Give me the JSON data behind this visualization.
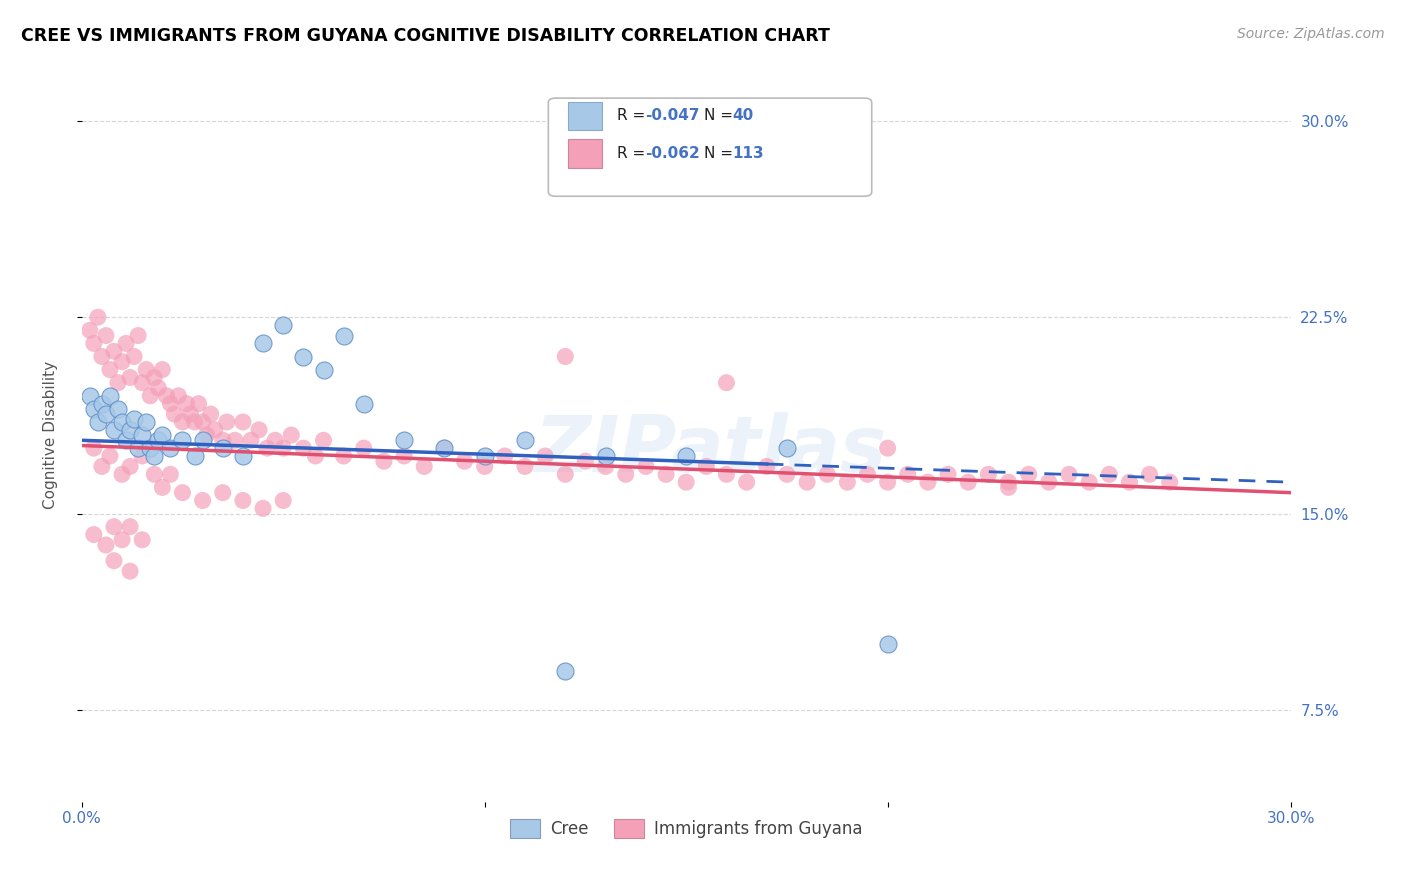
{
  "title": "CREE VS IMMIGRANTS FROM GUYANA COGNITIVE DISABILITY CORRELATION CHART",
  "source": "Source: ZipAtlas.com",
  "ylabel": "Cognitive Disability",
  "xmin": 0.0,
  "xmax": 0.3,
  "ymin": 0.04,
  "ymax": 0.32,
  "yticks": [
    0.075,
    0.15,
    0.225,
    0.3
  ],
  "ytick_labels": [
    "7.5%",
    "15.0%",
    "22.5%",
    "30.0%"
  ],
  "cree_color": "#a8c8e8",
  "guyana_color": "#f4a0b8",
  "trend_cree_color": "#3060c0",
  "trend_guyana_color": "#e05070",
  "watermark": "ZIPatlas",
  "cree_trend_start_y": 0.178,
  "cree_trend_end_y": 0.162,
  "guyana_trend_start_y": 0.176,
  "guyana_trend_end_y": 0.158,
  "cree_points": [
    [
      0.002,
      0.195
    ],
    [
      0.003,
      0.19
    ],
    [
      0.004,
      0.185
    ],
    [
      0.005,
      0.192
    ],
    [
      0.006,
      0.188
    ],
    [
      0.007,
      0.195
    ],
    [
      0.008,
      0.182
    ],
    [
      0.009,
      0.19
    ],
    [
      0.01,
      0.185
    ],
    [
      0.011,
      0.178
    ],
    [
      0.012,
      0.182
    ],
    [
      0.013,
      0.186
    ],
    [
      0.014,
      0.175
    ],
    [
      0.015,
      0.18
    ],
    [
      0.016,
      0.185
    ],
    [
      0.017,
      0.175
    ],
    [
      0.018,
      0.172
    ],
    [
      0.019,
      0.178
    ],
    [
      0.02,
      0.18
    ],
    [
      0.022,
      0.175
    ],
    [
      0.025,
      0.178
    ],
    [
      0.028,
      0.172
    ],
    [
      0.03,
      0.178
    ],
    [
      0.035,
      0.175
    ],
    [
      0.04,
      0.172
    ],
    [
      0.045,
      0.215
    ],
    [
      0.05,
      0.222
    ],
    [
      0.055,
      0.21
    ],
    [
      0.06,
      0.205
    ],
    [
      0.065,
      0.218
    ],
    [
      0.07,
      0.192
    ],
    [
      0.08,
      0.178
    ],
    [
      0.09,
      0.175
    ],
    [
      0.1,
      0.172
    ],
    [
      0.11,
      0.178
    ],
    [
      0.13,
      0.172
    ],
    [
      0.15,
      0.172
    ],
    [
      0.175,
      0.175
    ],
    [
      0.12,
      0.09
    ],
    [
      0.2,
      0.1
    ]
  ],
  "guyana_points": [
    [
      0.002,
      0.22
    ],
    [
      0.003,
      0.215
    ],
    [
      0.004,
      0.225
    ],
    [
      0.005,
      0.21
    ],
    [
      0.006,
      0.218
    ],
    [
      0.007,
      0.205
    ],
    [
      0.008,
      0.212
    ],
    [
      0.009,
      0.2
    ],
    [
      0.01,
      0.208
    ],
    [
      0.011,
      0.215
    ],
    [
      0.012,
      0.202
    ],
    [
      0.013,
      0.21
    ],
    [
      0.014,
      0.218
    ],
    [
      0.015,
      0.2
    ],
    [
      0.016,
      0.205
    ],
    [
      0.017,
      0.195
    ],
    [
      0.018,
      0.202
    ],
    [
      0.019,
      0.198
    ],
    [
      0.02,
      0.205
    ],
    [
      0.021,
      0.195
    ],
    [
      0.022,
      0.192
    ],
    [
      0.023,
      0.188
    ],
    [
      0.024,
      0.195
    ],
    [
      0.025,
      0.185
    ],
    [
      0.026,
      0.192
    ],
    [
      0.027,
      0.188
    ],
    [
      0.028,
      0.185
    ],
    [
      0.029,
      0.192
    ],
    [
      0.03,
      0.185
    ],
    [
      0.031,
      0.18
    ],
    [
      0.032,
      0.188
    ],
    [
      0.033,
      0.182
    ],
    [
      0.035,
      0.178
    ],
    [
      0.036,
      0.185
    ],
    [
      0.038,
      0.178
    ],
    [
      0.04,
      0.185
    ],
    [
      0.042,
      0.178
    ],
    [
      0.044,
      0.182
    ],
    [
      0.046,
      0.175
    ],
    [
      0.048,
      0.178
    ],
    [
      0.05,
      0.175
    ],
    [
      0.052,
      0.18
    ],
    [
      0.055,
      0.175
    ],
    [
      0.058,
      0.172
    ],
    [
      0.06,
      0.178
    ],
    [
      0.065,
      0.172
    ],
    [
      0.07,
      0.175
    ],
    [
      0.075,
      0.17
    ],
    [
      0.08,
      0.172
    ],
    [
      0.085,
      0.168
    ],
    [
      0.09,
      0.175
    ],
    [
      0.095,
      0.17
    ],
    [
      0.1,
      0.168
    ],
    [
      0.105,
      0.172
    ],
    [
      0.11,
      0.168
    ],
    [
      0.115,
      0.172
    ],
    [
      0.12,
      0.165
    ],
    [
      0.125,
      0.17
    ],
    [
      0.13,
      0.168
    ],
    [
      0.135,
      0.165
    ],
    [
      0.14,
      0.168
    ],
    [
      0.145,
      0.165
    ],
    [
      0.15,
      0.162
    ],
    [
      0.155,
      0.168
    ],
    [
      0.16,
      0.165
    ],
    [
      0.165,
      0.162
    ],
    [
      0.17,
      0.168
    ],
    [
      0.175,
      0.165
    ],
    [
      0.18,
      0.162
    ],
    [
      0.185,
      0.165
    ],
    [
      0.19,
      0.162
    ],
    [
      0.195,
      0.165
    ],
    [
      0.2,
      0.162
    ],
    [
      0.205,
      0.165
    ],
    [
      0.21,
      0.162
    ],
    [
      0.215,
      0.165
    ],
    [
      0.22,
      0.162
    ],
    [
      0.225,
      0.165
    ],
    [
      0.23,
      0.162
    ],
    [
      0.235,
      0.165
    ],
    [
      0.24,
      0.162
    ],
    [
      0.245,
      0.165
    ],
    [
      0.25,
      0.162
    ],
    [
      0.255,
      0.165
    ],
    [
      0.26,
      0.162
    ],
    [
      0.265,
      0.165
    ],
    [
      0.27,
      0.162
    ],
    [
      0.003,
      0.175
    ],
    [
      0.005,
      0.168
    ],
    [
      0.007,
      0.172
    ],
    [
      0.01,
      0.165
    ],
    [
      0.012,
      0.168
    ],
    [
      0.015,
      0.172
    ],
    [
      0.018,
      0.165
    ],
    [
      0.02,
      0.16
    ],
    [
      0.022,
      0.165
    ],
    [
      0.025,
      0.158
    ],
    [
      0.03,
      0.155
    ],
    [
      0.035,
      0.158
    ],
    [
      0.04,
      0.155
    ],
    [
      0.045,
      0.152
    ],
    [
      0.05,
      0.155
    ],
    [
      0.003,
      0.142
    ],
    [
      0.006,
      0.138
    ],
    [
      0.008,
      0.145
    ],
    [
      0.01,
      0.14
    ],
    [
      0.012,
      0.145
    ],
    [
      0.015,
      0.14
    ],
    [
      0.008,
      0.132
    ],
    [
      0.012,
      0.128
    ],
    [
      0.16,
      0.2
    ],
    [
      0.12,
      0.21
    ],
    [
      0.2,
      0.175
    ],
    [
      0.23,
      0.16
    ]
  ]
}
